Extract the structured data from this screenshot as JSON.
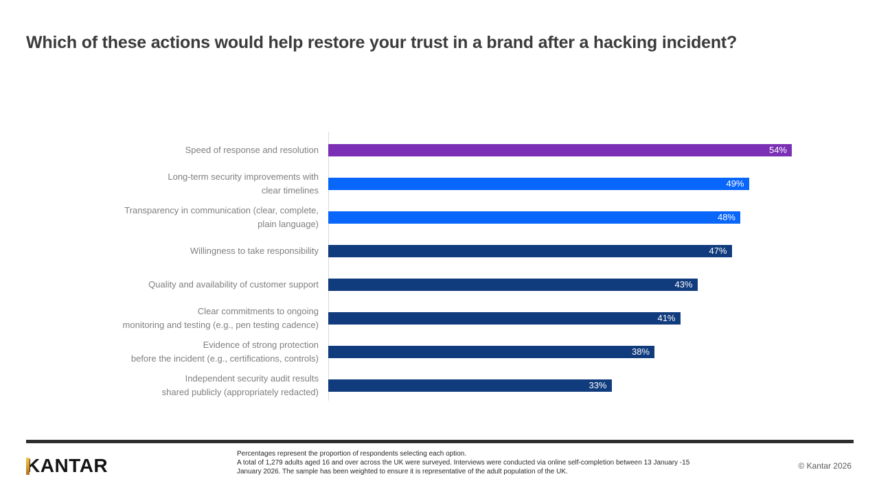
{
  "title": "Which of these actions would help restore your trust in a brand after a hacking incident?",
  "chart_data": {
    "type": "bar",
    "orientation": "horizontal",
    "title": "Which of these actions would help restore your trust in a brand after a hacking incident?",
    "categories": [
      "Speed of response and resolution",
      "Long-term security improvements with\nclear timelines",
      "Transparency in communication (clear, complete,\nplain language)",
      "Willingness to take responsibility",
      "Quality and availability of customer support",
      "Clear commitments to ongoing\nmonitoring and testing (e.g., pen testing cadence)",
      "Evidence of strong protection\nbefore the incident (e.g., certifications, controls)",
      "Independent security audit results\nshared publicly (appropriately redacted)"
    ],
    "values": [
      54,
      49,
      48,
      47,
      43,
      41,
      38,
      33
    ],
    "value_labels": [
      "54%",
      "49%",
      "48%",
      "47%",
      "43%",
      "41%",
      "38%",
      "33%"
    ],
    "bar_colors": [
      "#7b2fb5",
      "#0866fb",
      "#0866fb",
      "#103b7d",
      "#103b7d",
      "#103b7d",
      "#103b7d",
      "#103b7d"
    ],
    "xlim": [
      0,
      60
    ],
    "grid": false,
    "legend": false,
    "value_label_position": "inside-end",
    "axis_line_color": "#d9d9d9",
    "category_label_color": "#7f7f7f"
  },
  "footer": {
    "brand": "KANTAR",
    "notes": [
      "Percentages represent the proportion of respondents selecting each option.",
      "A total of 1,279 adults aged 16 and over across the UK were surveyed. Interviews were conducted via online self-completion between 13 January -15",
      "January 2026. The sample has been weighted to ensure it is representative of the adult population of the UK."
    ],
    "copyright": "© Kantar 2026",
    "divider_color": "#2e2e2e"
  }
}
